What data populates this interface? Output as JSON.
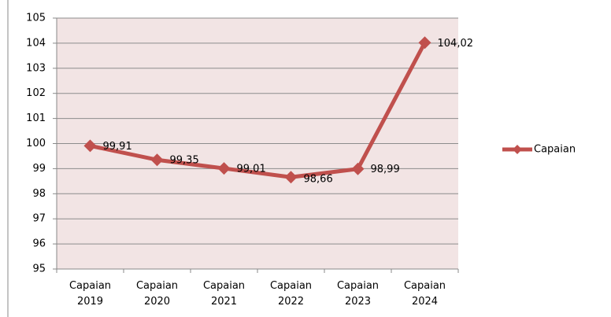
{
  "chart_data": {
    "type": "line",
    "categories": [
      "Capaian 2019",
      "Capaian 2020",
      "Capaian 2021",
      "Capaian 2022",
      "Capaian 2023",
      "Capaian 2024"
    ],
    "series": [
      {
        "name": "Capaian",
        "color": "#c0504d",
        "values": [
          99.91,
          99.35,
          99.01,
          98.66,
          98.99,
          104.02
        ],
        "value_labels": [
          "99,91",
          "99,35",
          "99,01",
          "98,66",
          "98,99",
          "104,02"
        ]
      }
    ],
    "ylim": [
      95,
      105
    ],
    "yticks": [
      95,
      96,
      97,
      98,
      99,
      100,
      101,
      102,
      103,
      104,
      105
    ],
    "grid": true,
    "legend": "right"
  }
}
